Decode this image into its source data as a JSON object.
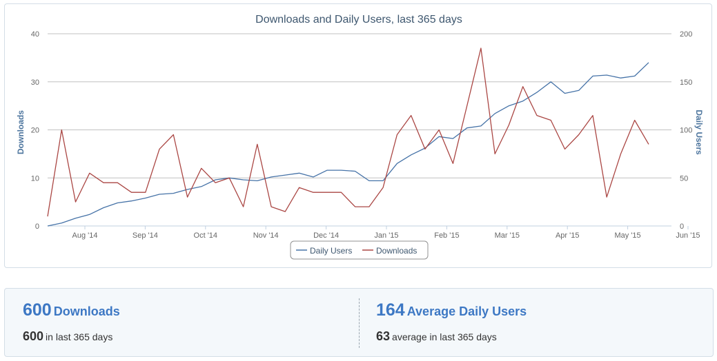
{
  "chart_data": {
    "type": "line",
    "title": "Downloads and Daily Users, last 365 days",
    "y_left": {
      "label": "Downloads",
      "range": [
        0,
        40
      ],
      "ticks": [
        "0",
        "10",
        "20",
        "30",
        "40"
      ]
    },
    "y_right": {
      "label": "Daily Users",
      "range": [
        0,
        200
      ],
      "ticks": [
        "0",
        "50",
        "100",
        "150",
        "200"
      ]
    },
    "x": {
      "ticks": [
        "Aug '14",
        "Sep '14",
        "Oct '14",
        "Nov '14",
        "Dec '14",
        "Jan '15",
        "Feb '15",
        "Mar '15",
        "Apr '15",
        "May '15",
        "Jun '15"
      ],
      "grid": false
    },
    "grid": "horizontal",
    "legend": {
      "position": "bottom-center",
      "items": [
        "Daily Users",
        "Downloads"
      ]
    },
    "series": [
      {
        "name": "Daily Users",
        "axis": "right",
        "color": "#4572a7",
        "values": [
          0,
          3,
          8,
          12,
          19,
          24,
          26,
          29,
          33,
          34,
          38,
          41,
          48,
          50,
          48,
          47,
          51,
          53,
          55,
          51,
          58,
          58,
          57,
          47,
          47,
          65,
          74,
          81,
          93,
          91,
          102,
          104,
          117,
          125,
          130,
          139,
          150,
          138,
          141,
          156,
          157,
          154,
          156,
          170
        ]
      },
      {
        "name": "Downloads",
        "axis": "left",
        "color": "#aa4643",
        "values": [
          2,
          20,
          5,
          11,
          9,
          9,
          7,
          7,
          16,
          19,
          6,
          12,
          9,
          10,
          4,
          17,
          4,
          3,
          8,
          7,
          7,
          7,
          4,
          4,
          8,
          19,
          23,
          16,
          20,
          13,
          25,
          37,
          15,
          21,
          29,
          23,
          22,
          16,
          19,
          23,
          6,
          15,
          22,
          17
        ]
      }
    ]
  },
  "stats": {
    "downloads": {
      "big": "600",
      "label": "Downloads",
      "sub_num": "600",
      "sub_text": "in last 365 days"
    },
    "users": {
      "big": "164",
      "label": "Average Daily Users",
      "sub_num": "63",
      "sub_text": "average in last 365 days"
    }
  },
  "colors": {
    "accent": "#3d78c4",
    "axis_title": "#4d759e",
    "tick": "#666666",
    "grid": "#c0c0c0"
  }
}
